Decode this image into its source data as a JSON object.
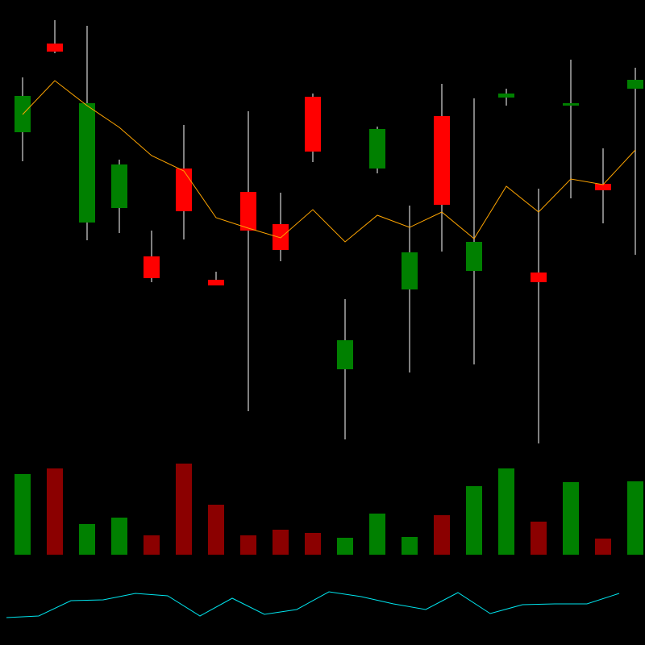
{
  "chart_data": [
    {
      "type": "candlestick",
      "open": [
        396,
        506,
        284,
        302,
        242,
        351,
        213,
        322,
        282,
        440,
        102,
        351,
        201,
        416,
        224,
        439,
        222,
        429,
        332,
        450
      ],
      "high": [
        464,
        535,
        528,
        362,
        274,
        405,
        223,
        422,
        321,
        444,
        189,
        403,
        305,
        456,
        438,
        450,
        326,
        486,
        376,
        476
      ],
      "low": [
        360,
        494,
        262,
        271,
        210,
        263,
        206,
        50,
        236,
        359,
        15,
        345,
        98,
        248,
        108,
        429,
        10,
        314,
        283,
        244
      ],
      "close": [
        441,
        496,
        432,
        356,
        215,
        298,
        206,
        274,
        250,
        372,
        138,
        400,
        247,
        306,
        260,
        444,
        210,
        432,
        324,
        461
      ],
      "up_color": "#008000",
      "down_color": "#ff0000",
      "wick_color": "#aaaaaa",
      "ylim": [
        0,
        560
      ],
      "overlay": {
        "type": "line",
        "color": "#ffa500",
        "values": [
          418,
          460,
          429,
          402,
          367,
          348,
          290,
          277,
          265,
          300,
          260,
          293,
          278,
          297,
          264,
          329,
          297,
          338,
          331,
          374
        ]
      }
    },
    {
      "type": "bar",
      "values": [
        100,
        107,
        38,
        46,
        24,
        113,
        62,
        24,
        31,
        27,
        21,
        51,
        22,
        49,
        85,
        107,
        41,
        90,
        20,
        91
      ],
      "colors": [
        "#008000",
        "#8b0000",
        "#008000",
        "#008000",
        "#8b0000",
        "#8b0000",
        "#8b0000",
        "#8b0000",
        "#8b0000",
        "#8b0000",
        "#008000",
        "#008000",
        "#008000",
        "#8b0000",
        "#008000",
        "#008000",
        "#8b0000",
        "#008000",
        "#8b0000",
        "#008000"
      ],
      "ylim": [
        0,
        118
      ]
    },
    {
      "type": "line",
      "color": "#00e5ee",
      "values": [
        34,
        36,
        55,
        56,
        64,
        61,
        36,
        58,
        38,
        44,
        66,
        60,
        51,
        44,
        65,
        39,
        50,
        51,
        51,
        64
      ],
      "ylim": [
        0,
        100
      ]
    }
  ]
}
